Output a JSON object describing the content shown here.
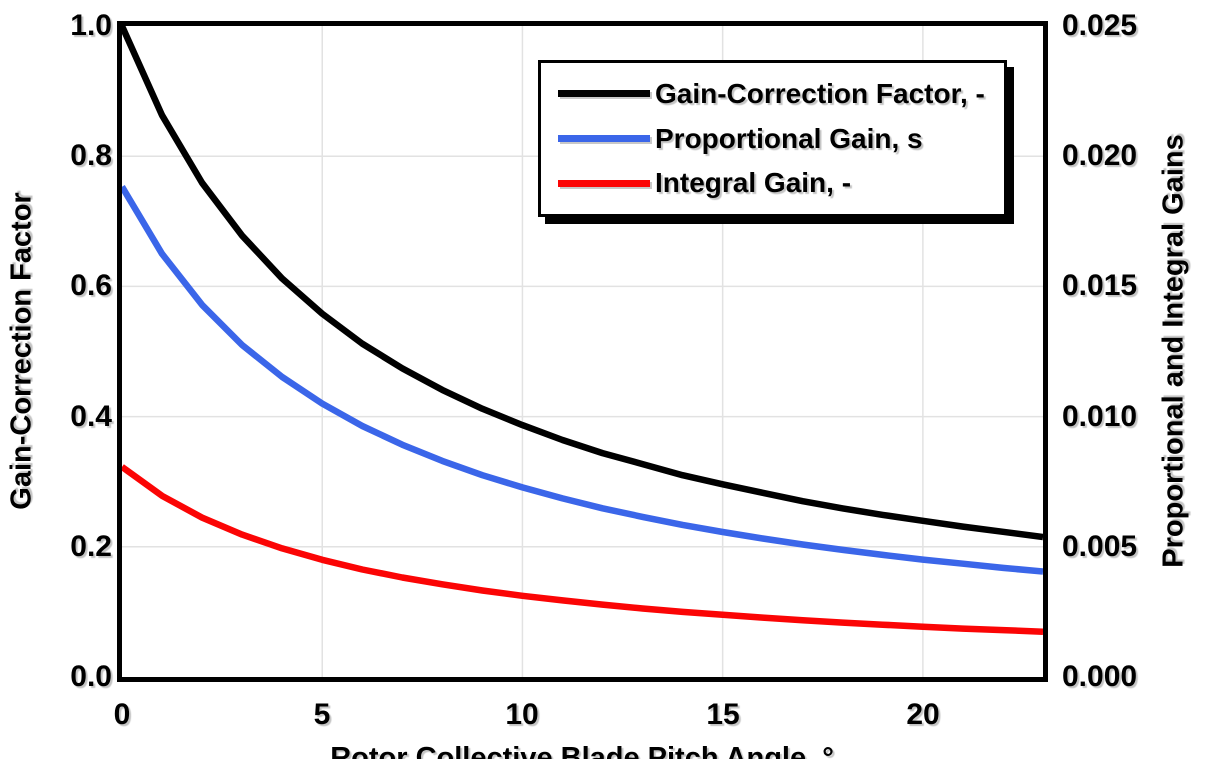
{
  "chart_data": {
    "type": "line",
    "title": "",
    "xlabel": "Rotor Collective Blade Pitch Angle, °",
    "ylabel_left": "Gain-Correction Factor",
    "ylabel_right": "Proportional and Integral Gains",
    "xlim": [
      0,
      23
    ],
    "ylim_left": [
      0.0,
      1.0
    ],
    "ylim_right": [
      0.0,
      0.025
    ],
    "grid": true,
    "grid_color": "#e2e2e2",
    "legend_position": "top-center-inside",
    "x_ticks": [
      {
        "label": "0",
        "value": 0
      },
      {
        "label": "5",
        "value": 5
      },
      {
        "label": "10",
        "value": 10
      },
      {
        "label": "15",
        "value": 15
      },
      {
        "label": "20",
        "value": 20
      }
    ],
    "y_ticks_left": [
      {
        "label": "1.0",
        "value": 1.0
      },
      {
        "label": "0.8",
        "value": 0.8
      },
      {
        "label": "0.6",
        "value": 0.6
      },
      {
        "label": "0.4",
        "value": 0.4
      },
      {
        "label": "0.2",
        "value": 0.2
      },
      {
        "label": "0.0",
        "value": 0.0
      }
    ],
    "y_ticks_right": [
      {
        "label": "0.025",
        "value": 0.025
      },
      {
        "label": "0.020",
        "value": 0.02
      },
      {
        "label": "0.015",
        "value": 0.015
      },
      {
        "label": "0.010",
        "value": 0.01
      },
      {
        "label": "0.005",
        "value": 0.005
      },
      {
        "label": "0.000",
        "value": 0.0
      }
    ],
    "x_grid_values": [
      5,
      10,
      15,
      20
    ],
    "y_grid_values_left": [
      0.2,
      0.4,
      0.6,
      0.8
    ],
    "x": [
      0,
      1,
      2,
      3,
      4,
      5,
      6,
      7,
      8,
      9,
      10,
      11,
      12,
      13,
      14,
      15,
      16,
      17,
      18,
      19,
      20,
      21,
      22,
      23
    ],
    "series": [
      {
        "name": "Gain-Correction Factor, -",
        "axis": "left",
        "color": "#000000",
        "values": [
          1.0,
          0.863,
          0.759,
          0.678,
          0.612,
          0.558,
          0.512,
          0.474,
          0.441,
          0.412,
          0.387,
          0.364,
          0.344,
          0.327,
          0.31,
          0.296,
          0.283,
          0.27,
          0.259,
          0.249,
          0.24,
          0.231,
          0.223,
          0.215
        ]
      },
      {
        "name": "Proportional Gain, s",
        "axis": "right",
        "color": "#3b66e9",
        "values": [
          0.01883,
          0.01625,
          0.01429,
          0.01275,
          0.01152,
          0.0105,
          0.00964,
          0.00892,
          0.0083,
          0.00775,
          0.00728,
          0.00686,
          0.00648,
          0.00615,
          0.00584,
          0.00557,
          0.00532,
          0.00509,
          0.00488,
          0.00469,
          0.00451,
          0.00435,
          0.00419,
          0.00405
        ]
      },
      {
        "name": "Integral Gain, -",
        "axis": "right",
        "color": "#fb0505",
        "values": [
          0.00807,
          0.00696,
          0.00612,
          0.00547,
          0.00494,
          0.0045,
          0.00413,
          0.00382,
          0.00356,
          0.00332,
          0.00312,
          0.00294,
          0.00278,
          0.00263,
          0.0025,
          0.00239,
          0.00228,
          0.00218,
          0.00209,
          0.00201,
          0.00193,
          0.00186,
          0.0018,
          0.00174
        ]
      }
    ]
  }
}
